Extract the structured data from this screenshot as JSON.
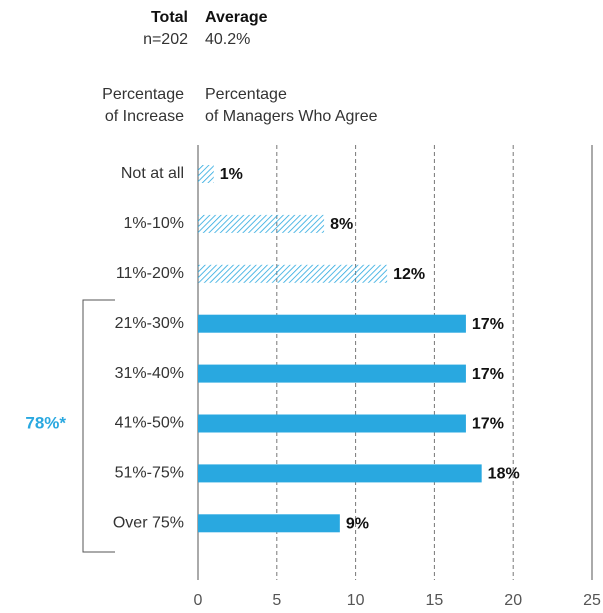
{
  "chart_data": {
    "type": "bar",
    "orientation": "horizontal",
    "total_label": "Total",
    "total_n": "n=202",
    "average_label": "Average",
    "average_value": "40.2%",
    "category_header": [
      "Percentage",
      "of Increase"
    ],
    "value_header": [
      "Percentage",
      "of Managers Who Agree"
    ],
    "annotation": "78%*",
    "categories": [
      "Not at all",
      "1%-10%",
      "11%-20%",
      "21%-30%",
      "31%-40%",
      "41%-50%",
      "51%-75%",
      "Over 75%"
    ],
    "values": [
      1,
      8,
      12,
      17,
      17,
      17,
      18,
      9
    ],
    "value_labels": [
      "1%",
      "8%",
      "12%",
      "17%",
      "17%",
      "17%",
      "18%",
      "9%"
    ],
    "hatched": [
      true,
      true,
      true,
      false,
      false,
      false,
      false,
      false
    ],
    "color": "#29a8e0",
    "xlim": [
      0,
      25
    ],
    "xticks": [
      0,
      5,
      10,
      15,
      20,
      25
    ],
    "grid": true
  }
}
